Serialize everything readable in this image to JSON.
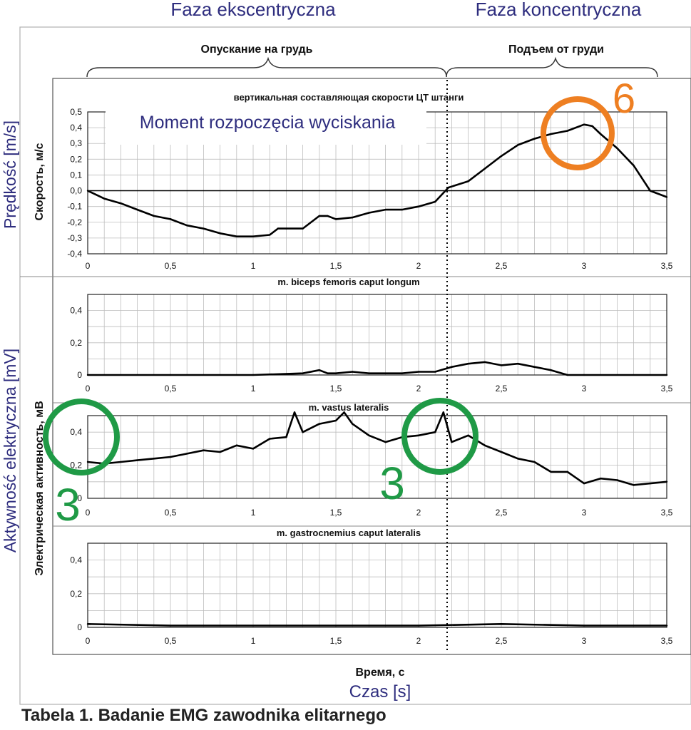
{
  "header": {
    "phase_ecc": "Faza ekscentryczna",
    "phase_con": "Faza koncentryczna",
    "ru_ecc": "Опускание на грудь",
    "ru_con": "Подъем от груди"
  },
  "annotations": {
    "moment": "Moment rozpoczęcia wyciskania",
    "num6": "6",
    "num3a": "3",
    "num3b": "3"
  },
  "labels": {
    "ylabel_pl_top": "Prędkość [m/s]",
    "ylabel_ru_top": "Скорость, м/с",
    "ylabel_pl_bottom": "Aktywność elektryczna [mV]",
    "ylabel_ru_bottom": "Электрическая активность, мВ",
    "xlabel_ru": "Время, с",
    "xlabel_pl": "Czas [s]"
  },
  "caption": "Tabela 1. Badanie EMG zawodnika elitarnego",
  "colors": {
    "orange": "#ee7f22",
    "green": "#1f9a46",
    "blue_text": "#2e2d7e",
    "line": "#000000"
  },
  "chart_data": [
    {
      "type": "line",
      "title": "вертикальная составляющая скорости ЦТ штанги",
      "xlim": [
        0,
        3.5
      ],
      "ylim": [
        -0.4,
        0.5
      ],
      "xticks": [
        "0",
        "0,5",
        "1",
        "1,5",
        "2",
        "2,5",
        "3",
        "3,5"
      ],
      "yticks": [
        "-0,4",
        "-0,3",
        "-0,2",
        "-0,1",
        "0,0",
        "0,1",
        "0,2",
        "0,3",
        "0,4",
        "0,5"
      ],
      "grid": true,
      "x": [
        0,
        0.1,
        0.2,
        0.3,
        0.4,
        0.5,
        0.6,
        0.7,
        0.8,
        0.9,
        1.0,
        1.1,
        1.15,
        1.2,
        1.3,
        1.4,
        1.45,
        1.5,
        1.6,
        1.7,
        1.8,
        1.9,
        2.0,
        2.1,
        2.18,
        2.3,
        2.4,
        2.5,
        2.6,
        2.7,
        2.8,
        2.9,
        3.0,
        3.05,
        3.1,
        3.2,
        3.3,
        3.4,
        3.5
      ],
      "values": [
        0.0,
        -0.05,
        -0.08,
        -0.12,
        -0.16,
        -0.18,
        -0.22,
        -0.24,
        -0.27,
        -0.29,
        -0.29,
        -0.28,
        -0.24,
        -0.24,
        -0.24,
        -0.16,
        -0.16,
        -0.18,
        -0.17,
        -0.14,
        -0.12,
        -0.12,
        -0.1,
        -0.07,
        0.02,
        0.06,
        0.14,
        0.22,
        0.29,
        0.33,
        0.36,
        0.38,
        0.42,
        0.41,
        0.36,
        0.27,
        0.16,
        0.0,
        -0.04
      ]
    },
    {
      "type": "line",
      "title": "m. biceps femoris caput longum",
      "xlim": [
        0,
        3.5
      ],
      "ylim": [
        0,
        0.5
      ],
      "xticks": [
        "0",
        "0,5",
        "1",
        "1,5",
        "2",
        "2,5",
        "3",
        "3,5"
      ],
      "yticks": [
        "0",
        "0,2",
        "0,4"
      ],
      "grid": true,
      "x": [
        0,
        0.5,
        1.0,
        1.3,
        1.4,
        1.45,
        1.5,
        1.6,
        1.7,
        1.8,
        1.9,
        2.0,
        2.1,
        2.2,
        2.3,
        2.4,
        2.5,
        2.6,
        2.7,
        2.8,
        2.9,
        3.0,
        3.5
      ],
      "values": [
        0,
        0,
        0,
        0.01,
        0.03,
        0.01,
        0.01,
        0.02,
        0.01,
        0.01,
        0.01,
        0.02,
        0.02,
        0.05,
        0.07,
        0.08,
        0.06,
        0.07,
        0.05,
        0.03,
        0.0,
        0.0,
        0.0
      ]
    },
    {
      "type": "line",
      "title": "m. vastus lateralis",
      "xlim": [
        0,
        3.5
      ],
      "ylim": [
        0,
        0.5
      ],
      "xticks": [
        "0",
        "0,5",
        "1",
        "1,5",
        "2",
        "2,5",
        "3",
        "3,5"
      ],
      "yticks": [
        "0",
        "0,2",
        "0,4"
      ],
      "grid": true,
      "x": [
        0,
        0.1,
        0.2,
        0.3,
        0.4,
        0.5,
        0.6,
        0.7,
        0.8,
        0.9,
        1.0,
        1.1,
        1.2,
        1.25,
        1.3,
        1.4,
        1.5,
        1.55,
        1.6,
        1.7,
        1.8,
        1.9,
        2.0,
        2.1,
        2.15,
        2.2,
        2.3,
        2.4,
        2.5,
        2.6,
        2.7,
        2.8,
        2.9,
        3.0,
        3.1,
        3.2,
        3.3,
        3.4,
        3.5
      ],
      "values": [
        0.22,
        0.21,
        0.22,
        0.23,
        0.24,
        0.25,
        0.27,
        0.29,
        0.28,
        0.32,
        0.3,
        0.36,
        0.37,
        0.52,
        0.4,
        0.45,
        0.47,
        0.52,
        0.45,
        0.38,
        0.34,
        0.37,
        0.38,
        0.4,
        0.52,
        0.34,
        0.38,
        0.32,
        0.28,
        0.24,
        0.22,
        0.16,
        0.16,
        0.09,
        0.12,
        0.11,
        0.08,
        0.09,
        0.1
      ]
    },
    {
      "type": "line",
      "title": "m. gastrocnemius caput lateralis",
      "xlim": [
        0,
        3.5
      ],
      "ylim": [
        0,
        0.5
      ],
      "xticks": [
        "0",
        "0,5",
        "1",
        "1,5",
        "2",
        "2,5",
        "3",
        "3,5"
      ],
      "yticks": [
        "0",
        "0,2",
        "0,4"
      ],
      "grid": true,
      "x": [
        0,
        0.5,
        1.0,
        1.5,
        2.0,
        2.5,
        3.0,
        3.5
      ],
      "values": [
        0.02,
        0.01,
        0.01,
        0.01,
        0.01,
        0.02,
        0.01,
        0.01
      ]
    }
  ]
}
